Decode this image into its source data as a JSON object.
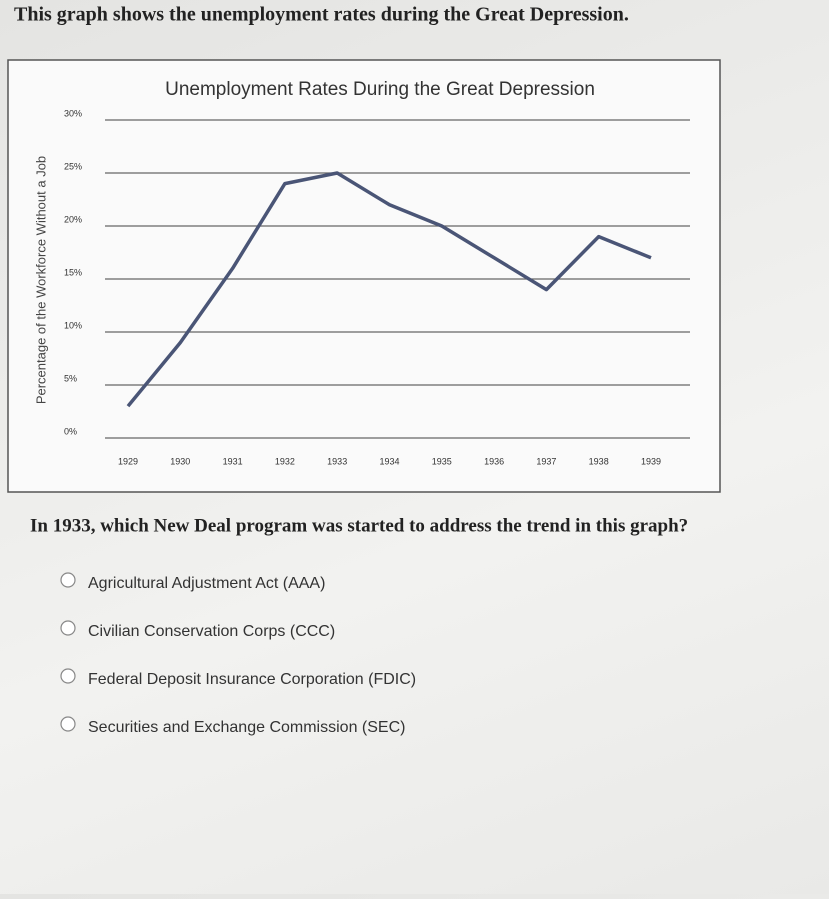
{
  "intro": "This graph shows the unemployment rates during the Great Depression.",
  "chart_data": {
    "type": "line",
    "title": "Unemployment Rates During the Great Depression",
    "y_label": "Percentage of the Workforce Without a Job",
    "categories": [
      "1929",
      "1930",
      "1931",
      "1932",
      "1933",
      "1934",
      "1935",
      "1936",
      "1937",
      "1938",
      "1939"
    ],
    "values": [
      3,
      9,
      16,
      24,
      25,
      22,
      20,
      17,
      14,
      19,
      17
    ],
    "color": "#4a5576",
    "ylim": [
      0,
      30
    ],
    "yticks": [
      {
        "value": 0,
        "label": "0%"
      },
      {
        "value": 5,
        "label": "5%"
      },
      {
        "value": 10,
        "label": "10%"
      },
      {
        "value": 15,
        "label": "15%"
      },
      {
        "value": 20,
        "label": "20%"
      },
      {
        "value": 25,
        "label": "25%"
      },
      {
        "value": 30,
        "label": "30%"
      }
    ],
    "grid": true
  },
  "question": "In 1933, which New Deal program was started to address the trend in this graph?",
  "options": [
    "Agricultural Adjustment Act (AAA)",
    "Civilian Conservation Corps (CCC)",
    "Federal Deposit Insurance Corporation (FDIC)",
    "Securities and Exchange Commission (SEC)"
  ]
}
